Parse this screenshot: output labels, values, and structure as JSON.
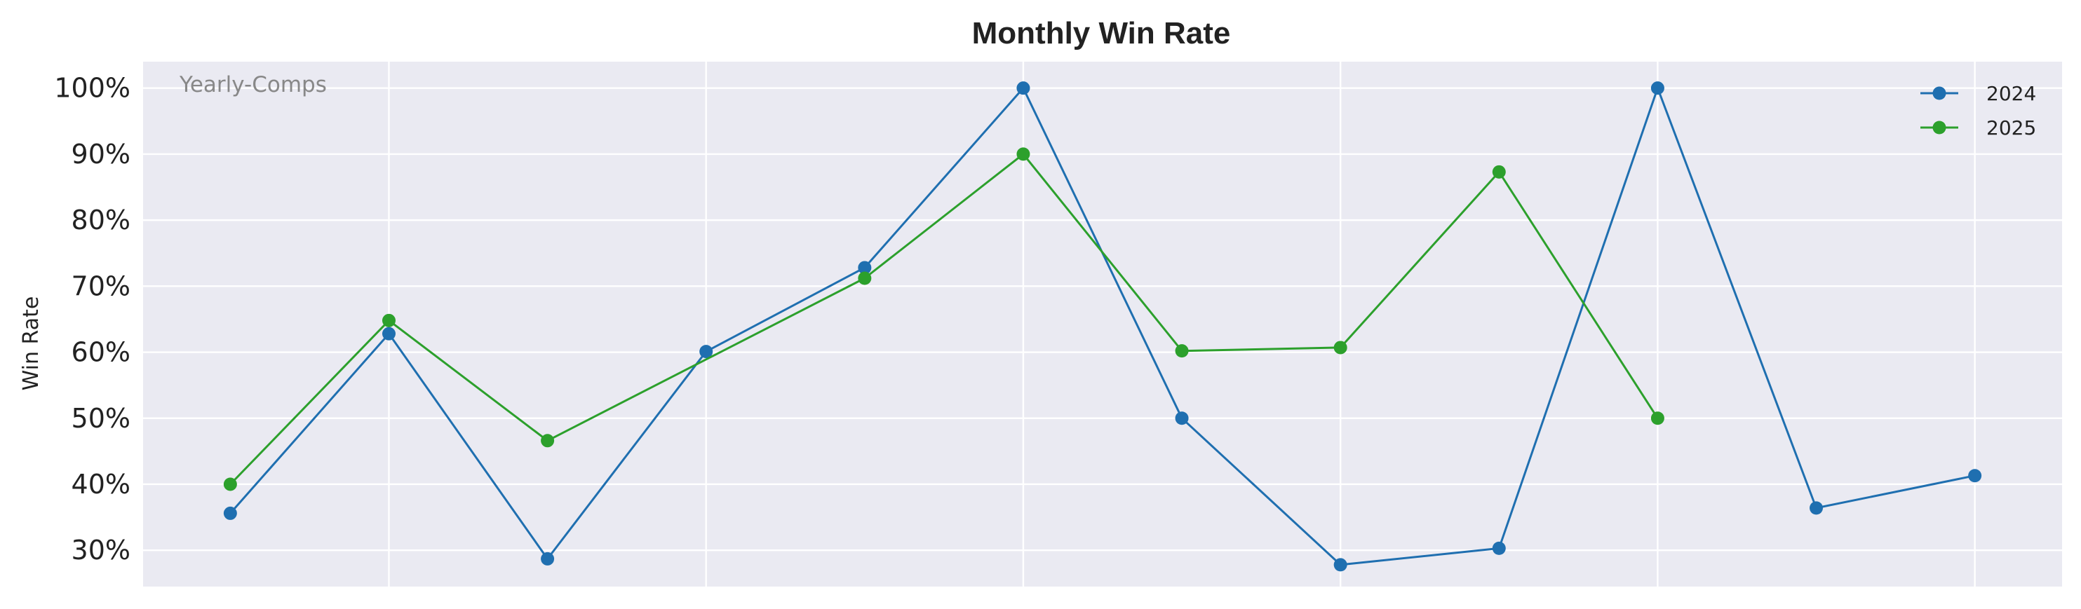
{
  "chart_data": {
    "type": "line",
    "title": "Monthly Win Rate",
    "xlabel": "",
    "ylabel": "Win Rate",
    "annotation": "Yearly-Comps",
    "x": [
      1,
      2,
      3,
      4,
      5,
      6,
      7,
      8,
      9,
      10,
      11,
      12
    ],
    "xlim": [
      0.45,
      12.55
    ],
    "ylim": [
      0.245,
      1.04
    ],
    "yticks": [
      0.3,
      0.4,
      0.5,
      0.6,
      0.7,
      0.8,
      0.9,
      1.0
    ],
    "ytick_labels": [
      "30%",
      "40%",
      "50%",
      "60%",
      "70%",
      "80%",
      "90%",
      "100%"
    ],
    "xgrid": [
      2,
      4,
      6,
      8,
      10,
      12
    ],
    "grid": true,
    "legend_position": "top-right",
    "series": [
      {
        "name": "2024",
        "color": "#1f6fb0",
        "values": [
          0.356,
          0.628,
          0.287,
          0.601,
          0.728,
          1.0,
          0.5,
          0.278,
          0.303,
          1.0,
          0.364,
          0.413
        ]
      },
      {
        "name": "2025",
        "color": "#2ca02c",
        "values": [
          0.4,
          0.648,
          0.466,
          null,
          0.712,
          0.9,
          0.602,
          0.607,
          0.873,
          0.5,
          null,
          null
        ]
      }
    ]
  }
}
